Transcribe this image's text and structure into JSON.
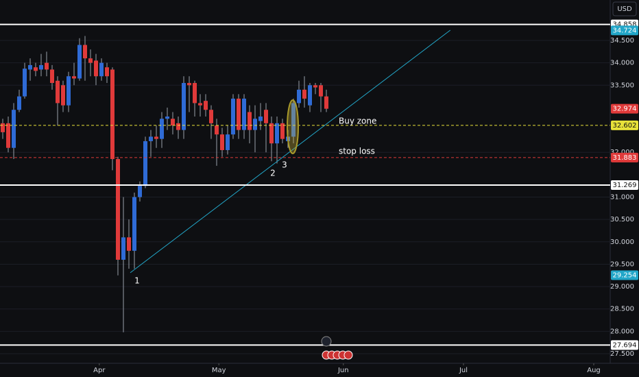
{
  "chart_data": {
    "type": "candlestick",
    "currency": "USD",
    "open": [
      32.65,
      32.65,
      32.1,
      32.95,
      33.25,
      33.85,
      33.9,
      33.85,
      34.0,
      33.85,
      33.6,
      33.5,
      33.05,
      33.7,
      33.65,
      34.4,
      34.1,
      34.05,
      33.7,
      33.9,
      33.85,
      31.85,
      29.6,
      30.1,
      29.8,
      31.0,
      31.25,
      32.25,
      32.35,
      32.3,
      32.75,
      32.75,
      32.65,
      32.5,
      33.55,
      33.55,
      33.1,
      33.15,
      32.95,
      32.6,
      32.4,
      32.05,
      32.4,
      33.2,
      32.5,
      32.9,
      32.5,
      32.7,
      32.95,
      32.65,
      32.2,
      32.65,
      32.25,
      32.35,
      33.1,
      33.4,
      33.05,
      33.5,
      33.5,
      33.25
    ],
    "high": [
      32.75,
      32.8,
      33.1,
      33.4,
      34.0,
      34.1,
      34.0,
      34.2,
      34.25,
      33.95,
      33.7,
      33.6,
      33.8,
      34.0,
      34.55,
      34.6,
      34.3,
      34.2,
      34.1,
      34.0,
      33.9,
      31.9,
      31.0,
      30.5,
      31.1,
      31.35,
      32.35,
      32.5,
      32.6,
      32.9,
      33.0,
      32.9,
      32.8,
      33.7,
      33.7,
      33.6,
      33.3,
      33.3,
      33.05,
      32.75,
      32.55,
      32.6,
      33.3,
      33.3,
      33.3,
      33.05,
      33.05,
      33.1,
      33.1,
      32.8,
      32.8,
      32.75,
      32.5,
      33.2,
      33.6,
      33.7,
      33.55,
      33.55,
      33.55,
      33.4
    ],
    "low": [
      32.3,
      32.0,
      31.85,
      32.9,
      33.2,
      33.6,
      33.7,
      33.7,
      33.7,
      33.4,
      32.6,
      32.9,
      32.9,
      33.5,
      33.6,
      33.6,
      33.7,
      33.5,
      33.6,
      33.55,
      31.6,
      29.25,
      27.98,
      29.4,
      29.4,
      30.9,
      31.2,
      31.9,
      32.1,
      32.1,
      32.5,
      32.4,
      32.3,
      32.3,
      32.9,
      32.8,
      32.8,
      32.8,
      32.3,
      31.7,
      31.9,
      31.95,
      32.3,
      32.3,
      32.3,
      32.2,
      32.0,
      32.5,
      32.0,
      31.8,
      31.75,
      32.2,
      32.1,
      32.2,
      33.0,
      33.0,
      32.9,
      33.3,
      32.9,
      32.9
    ],
    "close": [
      32.45,
      32.1,
      32.95,
      33.25,
      33.87,
      33.95,
      33.82,
      33.95,
      33.85,
      33.55,
      33.1,
      33.05,
      33.7,
      33.65,
      34.4,
      34.1,
      34.0,
      33.7,
      34.0,
      33.7,
      31.85,
      29.6,
      30.1,
      29.8,
      31.0,
      31.25,
      32.25,
      32.35,
      32.3,
      32.75,
      32.8,
      32.6,
      32.5,
      33.55,
      33.5,
      33.1,
      33.05,
      32.95,
      32.65,
      32.4,
      32.05,
      32.4,
      33.2,
      32.5,
      33.2,
      32.5,
      32.75,
      32.8,
      32.65,
      32.2,
      32.65,
      32.3,
      32.35,
      33.1,
      33.4,
      33.2,
      33.5,
      33.45,
      33.25,
      32.974
    ],
    "up_color": "#2f6bd6",
    "down_color": "#e03a3a",
    "xlim": [
      -0.5,
      110.75
    ],
    "ylim": [
      27.286,
      35.404
    ],
    "xticks": [
      {
        "value": 17.6,
        "label": "Apr"
      },
      {
        "value": 39.4,
        "label": "May"
      },
      {
        "value": 62.1,
        "label": "Jun"
      },
      {
        "value": 84,
        "label": "Jul"
      },
      {
        "value": 107.75,
        "label": "Aug"
      }
    ],
    "yticks": [
      {
        "value": 27.5,
        "label": "27.500"
      },
      {
        "value": 28,
        "label": "28.000"
      },
      {
        "value": 28.5,
        "label": "28.500"
      },
      {
        "value": 29,
        "label": "29.000"
      },
      {
        "value": 29.5,
        "label": "29.500"
      },
      {
        "value": 30,
        "label": "30.000"
      },
      {
        "value": 30.5,
        "label": "30.500"
      },
      {
        "value": 31,
        "label": "31.000"
      },
      {
        "value": 32,
        "label": "32.000"
      },
      {
        "value": 33.5,
        "label": "33.500"
      },
      {
        "value": 34,
        "label": "34.000"
      },
      {
        "value": 34.5,
        "label": "34.500"
      }
    ],
    "price_lines": [
      {
        "value": 34.858,
        "color": "#ffffff",
        "style": "solid"
      },
      {
        "value": 34.724,
        "color": "#22a6c8",
        "style": "none"
      },
      {
        "value": 32.974,
        "color": "#e03a3a",
        "style": "none"
      },
      {
        "value": 32.602,
        "color": "#e8e23a",
        "style": "dashed"
      },
      {
        "value": 31.883,
        "color": "#e03a3a",
        "style": "dashed"
      },
      {
        "value": 31.269,
        "color": "#ffffff",
        "style": "solid"
      },
      {
        "value": 29.254,
        "color": "#22a6c8",
        "style": "none"
      },
      {
        "value": 27.694,
        "color": "#ffffff",
        "style": "solid"
      }
    ],
    "trendline": {
      "x": [
        23.25,
        81.6
      ],
      "y": [
        29.31,
        34.73
      ],
      "color": "#22a6c8"
    },
    "annotations": [
      "Buy zone",
      "stop loss",
      "1",
      "2",
      "3"
    ]
  }
}
